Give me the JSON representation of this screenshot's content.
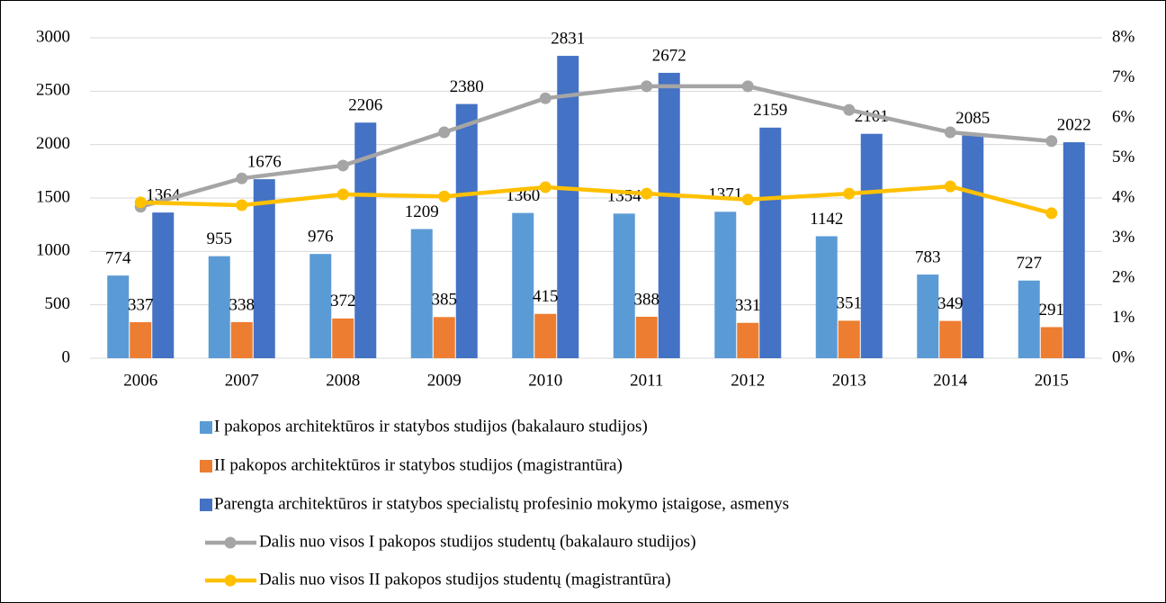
{
  "chart_data": {
    "type": "bar",
    "categories": [
      "2006",
      "2007",
      "2008",
      "2009",
      "2010",
      "2011",
      "2012",
      "2013",
      "2014",
      "2015"
    ],
    "ylim": [
      0,
      3000
    ],
    "yticks": [
      0,
      500,
      1000,
      1500,
      2000,
      2500,
      3000
    ],
    "y2lim": [
      0,
      8
    ],
    "y2ticks": [
      {
        "value": 0,
        "label": "0%"
      },
      {
        "value": 1,
        "label": "1%"
      },
      {
        "value": 2,
        "label": "2%"
      },
      {
        "value": 3,
        "label": "3%"
      },
      {
        "value": 4,
        "label": "4%"
      },
      {
        "value": 5,
        "label": "5%"
      },
      {
        "value": 6,
        "label": "6%"
      },
      {
        "value": 7,
        "label": "7%"
      },
      {
        "value": 8,
        "label": "8%"
      }
    ],
    "grid": true,
    "legend": "bottom",
    "series": [
      {
        "name": "I pakopos architektūros ir statybos studijos (bakalauro studijos)",
        "type": "bar",
        "color": "#5b9bd5",
        "values": [
          774,
          955,
          976,
          1209,
          1360,
          1354,
          1371,
          1142,
          783,
          727
        ]
      },
      {
        "name": "II pakopos architektūros ir statybos studijos (magistrantūra)",
        "type": "bar",
        "color": "#ed7d31",
        "values": [
          337,
          338,
          372,
          385,
          415,
          388,
          331,
          351,
          349,
          291
        ]
      },
      {
        "name": "Parengta architektūros ir statybos specialistų profesinio mokymo įstaigose, asmenys",
        "type": "bar",
        "color": "#4472c4",
        "values": [
          1364,
          1676,
          2206,
          2380,
          2831,
          2672,
          2159,
          2101,
          2085,
          2022
        ]
      },
      {
        "name": "Dalis nuo visos I pakopos studijos studentų (bakalauro studijos)",
        "type": "line",
        "axis": "y2",
        "color": "#a5a5a5",
        "values": [
          3.78,
          4.49,
          4.81,
          5.64,
          6.49,
          6.79,
          6.79,
          6.2,
          5.64,
          5.42
        ]
      },
      {
        "name": "Dalis nuo visos II pakopos studijos studentų (magistrantūra)",
        "type": "line",
        "axis": "y2",
        "color": "#ffc000",
        "values": [
          3.89,
          3.82,
          4.09,
          4.04,
          4.27,
          4.11,
          3.96,
          4.11,
          4.29,
          3.62
        ]
      }
    ]
  }
}
